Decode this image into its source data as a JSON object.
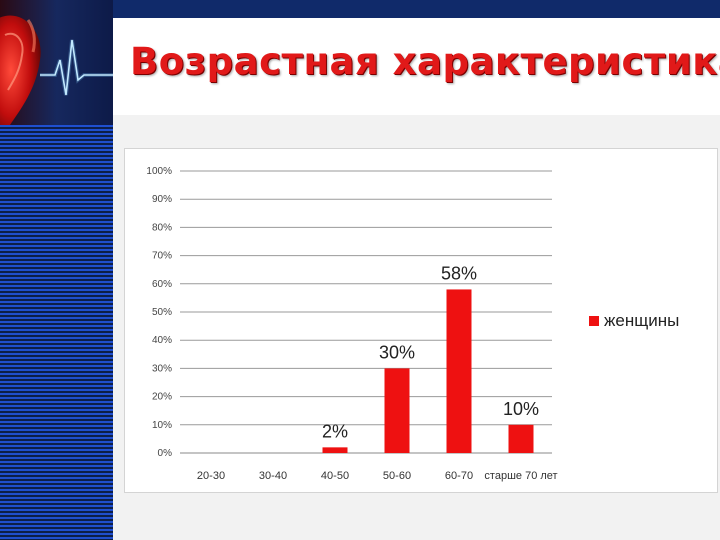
{
  "slide": {
    "title": "Возрастная характеристика"
  },
  "colors": {
    "accent": "#e11919",
    "bar": "#ee1111",
    "banner_dark": "#102a6a",
    "stripe_blue": "#1f4fd0"
  },
  "icons": [
    "heart-ecg-image"
  ],
  "chart_data": {
    "type": "bar",
    "categories": [
      "20-30",
      "30-40",
      "40-50",
      "50-60",
      "60-70",
      "старше 70 лет"
    ],
    "series": [
      {
        "name": "женщины",
        "values": [
          0,
          0,
          2,
          30,
          58,
          10
        ]
      }
    ],
    "data_labels": [
      "",
      "",
      "2%",
      "30%",
      "58%",
      "10%"
    ],
    "y_ticks": [
      "0%",
      "10%",
      "20%",
      "30%",
      "40%",
      "50%",
      "60%",
      "70%",
      "80%",
      "90%",
      "100%"
    ],
    "ylim": [
      0,
      100
    ],
    "grid": true,
    "legend": "right"
  }
}
